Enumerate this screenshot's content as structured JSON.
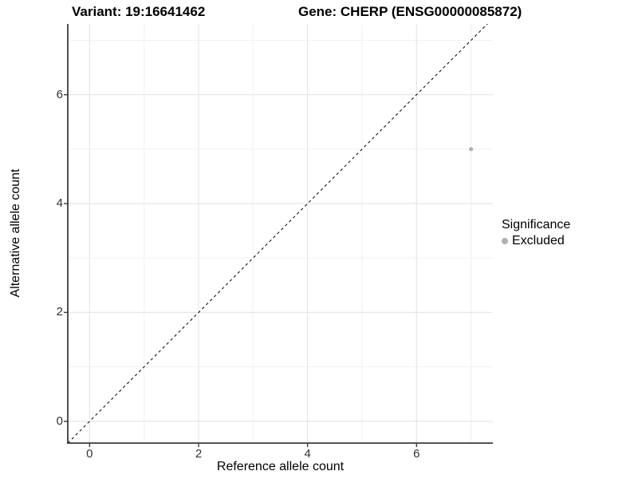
{
  "titles": {
    "left": "Variant: 19:16641462",
    "right": "Gene: CHERP (ENSG00000085872)"
  },
  "chart_data": {
    "type": "scatter",
    "title_left": "Variant: 19:16641462",
    "title_right": "Gene: CHERP (ENSG00000085872)",
    "xlabel": "Reference allele count",
    "ylabel": "Alternative allele count",
    "xlim": [
      -0.4,
      7.4
    ],
    "ylim": [
      -0.4,
      7.3
    ],
    "x_ticks": [
      0,
      2,
      4,
      6
    ],
    "y_ticks": [
      0,
      2,
      4,
      6
    ],
    "grid": {
      "x_major": [
        0,
        2,
        4,
        6
      ],
      "x_minor": [
        1,
        3,
        5,
        7
      ],
      "y_major": [
        0,
        2,
        4,
        6
      ],
      "y_minor": [
        1,
        3,
        5,
        7
      ]
    },
    "reference_line": {
      "equation": "y = x",
      "style": "dashed",
      "color": "#000000"
    },
    "series": [
      {
        "name": "Excluded",
        "color": "#b0b0b0",
        "marker": "circle",
        "points": [
          {
            "x": 7,
            "y": 5
          }
        ]
      }
    ],
    "legend": {
      "title": "Significance",
      "position": "right",
      "entries": [
        {
          "label": "Excluded",
          "color": "#b0b0b0"
        }
      ]
    }
  },
  "colors": {
    "background": "#ffffff",
    "axis_line": "#3c3c3c",
    "tick_label": "#333333",
    "grid_major": "#e7e7e7",
    "grid_minor": "#f1f1f1",
    "point": "#b0b0b0"
  }
}
